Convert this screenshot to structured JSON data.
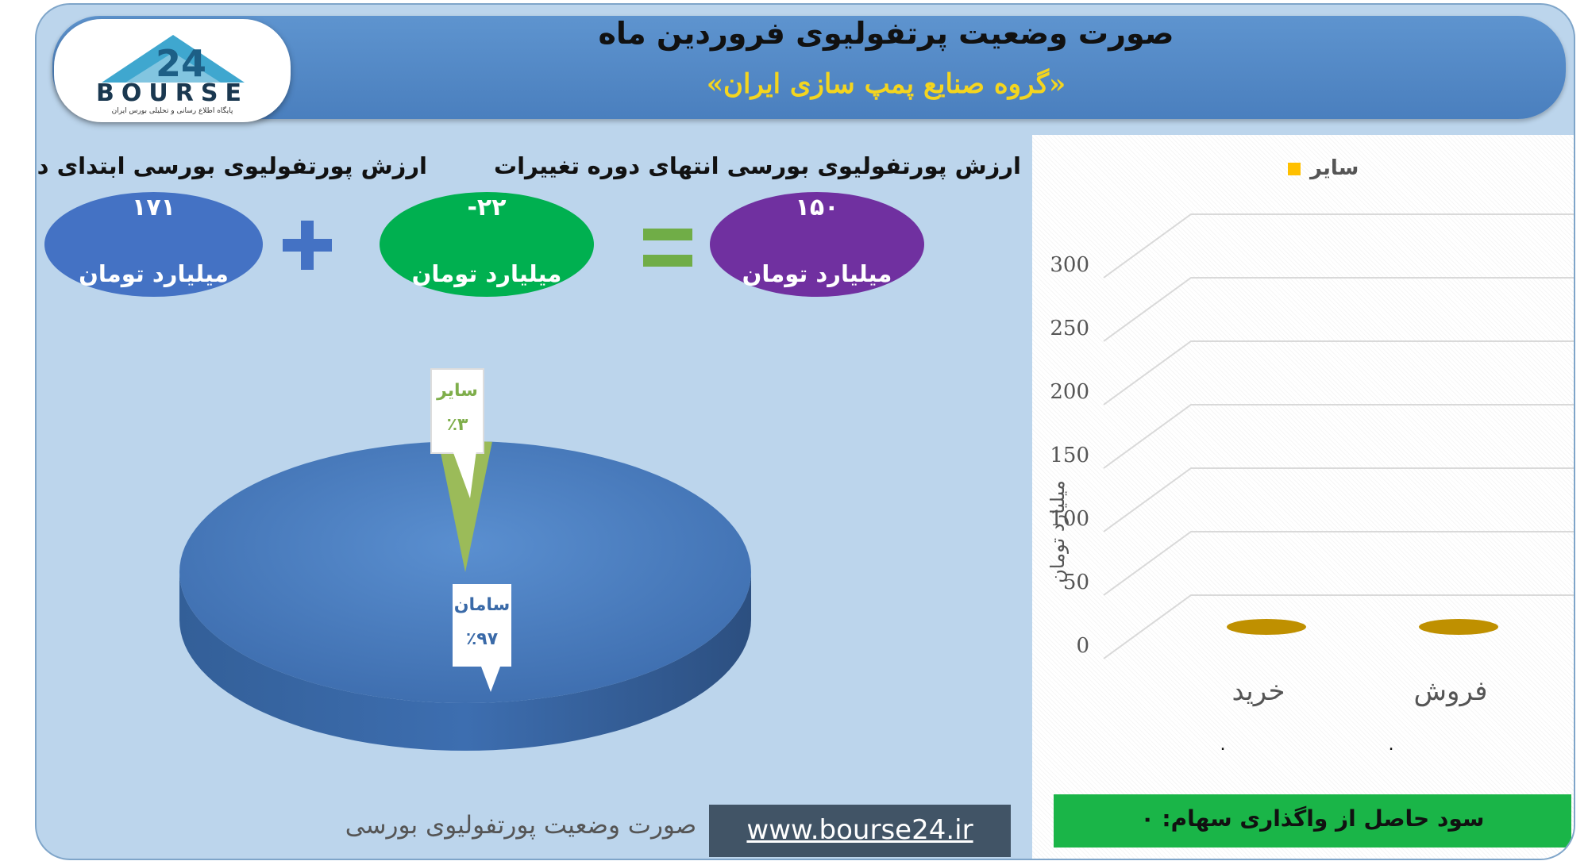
{
  "header": {
    "title": "صورت وضعیت پرتفولیوی فروردین ماه",
    "subtitle": "«گروه صنایع پمپ سازی ایران»",
    "logo_text": "BOURSE",
    "logo_number": "24",
    "logo_tagline": "پایگاه اطلاع رسانی و تحلیلی بورس ایران"
  },
  "summary": {
    "start": {
      "label": "ارزش پورتفولیوی بورسی ابتدای دوره",
      "value": "۱۷۱",
      "unit": "میلیارد تومان",
      "color": "#4472c4"
    },
    "change": {
      "label": "تغییرات",
      "value": "-۲۲",
      "unit": "میلیارد تومان",
      "color": "#00b050"
    },
    "end": {
      "label": "ارزش پورتفولیوی بورسی انتهای دوره",
      "value": "۱۵۰",
      "unit": "میلیارد تومان",
      "color": "#7030a0"
    },
    "plus_symbol": "+",
    "equals_symbol": "="
  },
  "chart_data": [
    {
      "type": "pie",
      "labels": [
        "سامان",
        "سایر"
      ],
      "values": [
        97,
        3
      ],
      "value_labels": [
        "٪۹۷",
        "٪۳"
      ],
      "colors": [
        "#4f81bd",
        "#9bbb59"
      ],
      "title": ""
    },
    {
      "type": "bar",
      "categories": [
        "خرید",
        "فروش"
      ],
      "series": [
        {
          "name": "سایر",
          "values": [
            0,
            0
          ],
          "color": "#bf9000"
        }
      ],
      "ylabel": "میلیارد تومان",
      "ylim": [
        0,
        300
      ],
      "yticks": [
        "300",
        "250",
        "200",
        "150",
        "100",
        "50",
        "0"
      ],
      "category_values": [
        "۰",
        "۰"
      ],
      "legend_position": "top",
      "grid": true
    }
  ],
  "profit": {
    "text": "سود حاصل از واگذاری سهام: ۰"
  },
  "footer": {
    "caption": "صورت وضعیت پورتفولیوی بورسی",
    "url": "www.bourse24.ir"
  }
}
